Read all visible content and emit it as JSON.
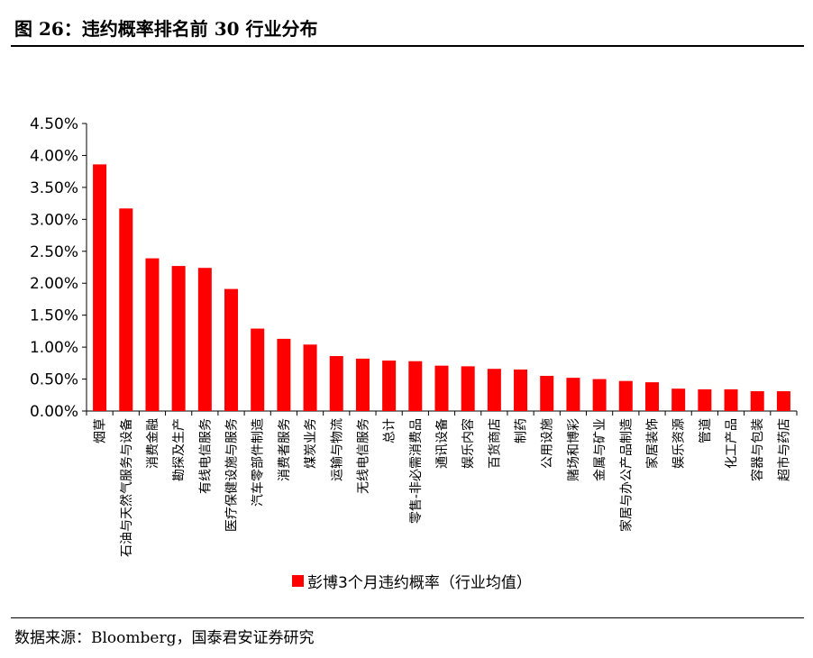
{
  "figure": {
    "title": "图 26：违约概率排名前 30 行业分布",
    "source": "数据来源：Bloomberg，国泰君安证券研究"
  },
  "chart_data": {
    "type": "bar",
    "bar_color": "#ff0000",
    "legend_position": "bottom",
    "grid": false,
    "ylim": [
      0,
      4.5
    ],
    "y_ticks": [
      "0.00%",
      "0.50%",
      "1.00%",
      "1.50%",
      "2.00%",
      "2.50%",
      "3.00%",
      "3.50%",
      "4.00%",
      "4.50%"
    ],
    "categories": [
      "烟草",
      "石油与天然气服务与设备",
      "消费金融",
      "勘探及生产",
      "有线电信服务",
      "医疗保健设施与服务",
      "汽车零部件制造",
      "消费者服务",
      "煤炭业务",
      "运输与物流",
      "无线电信服务",
      "总计",
      "零售-非必需消费品",
      "通讯设备",
      "娱乐内容",
      "百货商店",
      "制药",
      "公用设施",
      "赌场和博彩",
      "金属与矿业",
      "家居与办公产品制造",
      "家居装饰",
      "娱乐资源",
      "管道",
      "化工产品",
      "容器与包装",
      "超市与药店"
    ],
    "series": [
      {
        "name": "彭博3个月违约概率（行业均值）",
        "values": [
          3.86,
          3.17,
          2.39,
          2.27,
          2.24,
          1.91,
          1.29,
          1.13,
          1.04,
          0.86,
          0.82,
          0.79,
          0.78,
          0.71,
          0.7,
          0.66,
          0.65,
          0.55,
          0.52,
          0.5,
          0.47,
          0.45,
          0.35,
          0.34,
          0.34,
          0.31,
          0.31
        ]
      }
    ]
  }
}
